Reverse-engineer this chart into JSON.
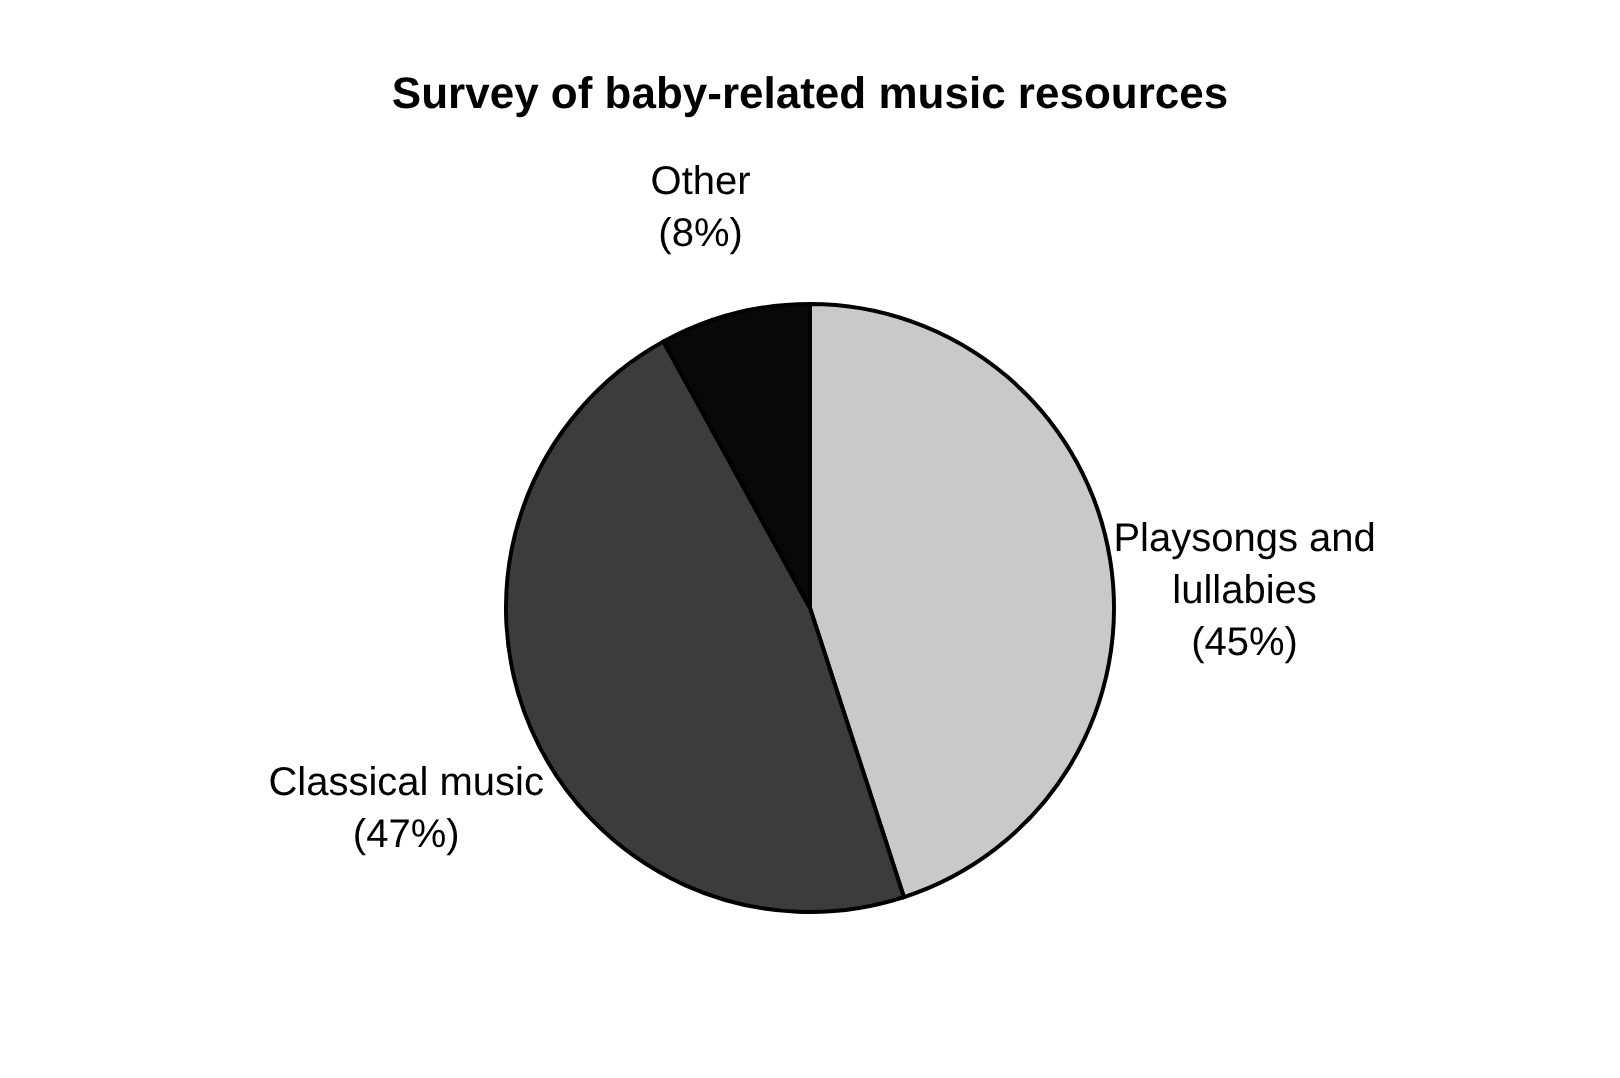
{
  "chart_data": {
    "type": "pie",
    "title": "Survey of baby-related music resources",
    "categories": [
      "Playsongs and lullabies",
      "Classical music",
      "Other"
    ],
    "values": [
      45,
      47,
      8
    ],
    "colors": [
      "#c9c9c9",
      "#3c3c3c",
      "#080808"
    ],
    "value_labels": [
      "(45%)",
      "(47%)",
      "(8%)"
    ],
    "legend": false
  }
}
